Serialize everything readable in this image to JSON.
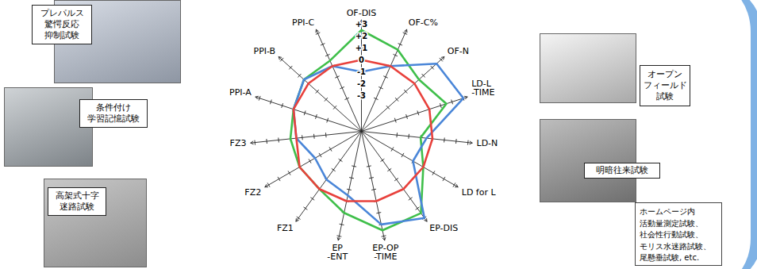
{
  "chart_data": {
    "type": "radar",
    "categories": [
      "OF-DIS",
      "OF-C%",
      "OF-N",
      "LD-L\n-TIME",
      "LD-N",
      "LD for L",
      "EP-DIS",
      "EP-OP\n-TIME",
      "EP\n-ENT",
      "FZ1",
      "FZ2",
      "FZ3",
      "PPI-A",
      "PPI-B",
      "PPI-C"
    ],
    "series": [
      {
        "color": "#3fbf4a",
        "values": [
          2.5,
          1.5,
          0.5,
          1.5,
          -1,
          0,
          2.5,
          2.5,
          1,
          0,
          0,
          0,
          0,
          0.5,
          0.5
        ]
      },
      {
        "color": "#4a86d8",
        "values": [
          -1,
          0,
          2.5,
          3,
          -0.5,
          -1,
          3,
          2,
          -0.5,
          -1,
          -1.5,
          -0.5,
          0,
          0.5,
          0
        ]
      },
      {
        "color": "#e8413c",
        "values": [
          0,
          0,
          0,
          0,
          0,
          0,
          0,
          0,
          0,
          0,
          0,
          -0.5,
          0,
          0,
          0
        ]
      }
    ],
    "rlim": [
      -6,
      3
    ],
    "rticks": [
      {
        "value": 3,
        "label": "+3"
      },
      {
        "value": 2,
        "label": "+2"
      },
      {
        "value": 1,
        "label": "+1"
      },
      0,
      -1,
      -2,
      -3
    ],
    "grid": false
  },
  "photos": [
    {
      "lines": [
        "プレパルス",
        "驚愕反応",
        "抑制試験"
      ]
    },
    {
      "lines": [
        "条件付け",
        "学習記憶試験"
      ]
    },
    {
      "lines": [
        "高架式十字",
        "迷路試験"
      ]
    },
    {
      "lines": [
        "オープン",
        "フィールド",
        "試験"
      ]
    },
    {
      "lines": [
        "明暗往来試験"
      ]
    }
  ],
  "note": {
    "lines": [
      "ホームページ内",
      "活動量測定試験、",
      "社会性行動試験、",
      "モリス水迷路試験、",
      "尾懸垂試験, etc."
    ]
  }
}
